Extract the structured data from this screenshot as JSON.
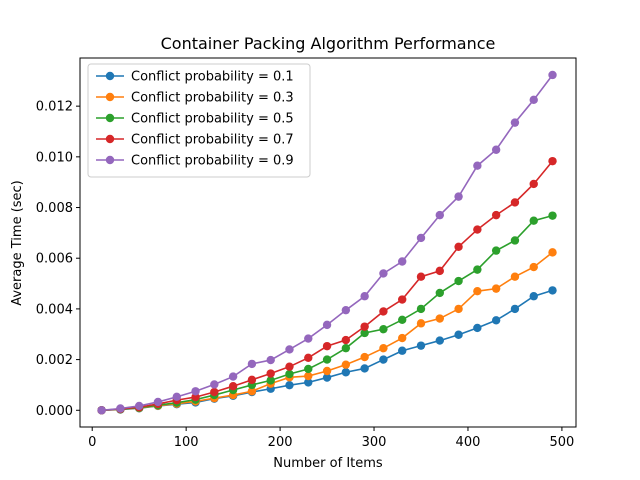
{
  "chart_data": {
    "type": "line",
    "title": "Container Packing Algorithm Performance",
    "xlabel": "Number of Items",
    "ylabel": "Average Time (sec)",
    "xlim": [
      -13,
      515
    ],
    "ylim": [
      -0.00066,
      0.0139
    ],
    "xticks": [
      0,
      100,
      200,
      300,
      400,
      500
    ],
    "xtick_labels": [
      "0",
      "100",
      "200",
      "300",
      "400",
      "500"
    ],
    "yticks": [
      0,
      0.002,
      0.004,
      0.006,
      0.008,
      0.01,
      0.012
    ],
    "ytick_labels": [
      "0.000",
      "0.002",
      "0.004",
      "0.006",
      "0.008",
      "0.010",
      "0.012"
    ],
    "grid": false,
    "legend_position": "upper-left",
    "x": [
      10,
      30,
      50,
      70,
      90,
      110,
      130,
      150,
      170,
      190,
      210,
      230,
      250,
      270,
      290,
      310,
      330,
      350,
      370,
      390,
      410,
      430,
      450,
      470,
      490
    ],
    "series": [
      {
        "name": "Conflict probability = 0.1",
        "color": "#1f77b4",
        "values": [
          0.0,
          3e-05,
          8e-05,
          0.00017,
          0.00024,
          0.00031,
          0.00046,
          0.00057,
          0.00072,
          0.00085,
          0.00099,
          0.0011,
          0.00129,
          0.0015,
          0.00165,
          0.002,
          0.00235,
          0.00255,
          0.00275,
          0.00298,
          0.00325,
          0.00355,
          0.004,
          0.0045,
          0.00473
        ]
      },
      {
        "name": "Conflict probability = 0.3",
        "color": "#ff7f0e",
        "values": [
          0.0,
          4e-05,
          9e-05,
          0.00018,
          0.00026,
          0.00035,
          0.00048,
          0.0006,
          0.00075,
          0.00105,
          0.0013,
          0.00135,
          0.00155,
          0.0018,
          0.0021,
          0.00245,
          0.00285,
          0.00343,
          0.00362,
          0.004,
          0.0047,
          0.0048,
          0.00527,
          0.00565,
          0.00623
        ]
      },
      {
        "name": "Conflict probability = 0.5",
        "color": "#2ca02c",
        "values": [
          0.0,
          4e-05,
          0.0001,
          0.0002,
          0.0003,
          0.00042,
          0.0006,
          0.0008,
          0.001,
          0.00118,
          0.00143,
          0.00163,
          0.002,
          0.00245,
          0.00305,
          0.0032,
          0.00357,
          0.004,
          0.00463,
          0.0051,
          0.00555,
          0.0063,
          0.0067,
          0.00748,
          0.00768
        ]
      },
      {
        "name": "Conflict probability = 0.7",
        "color": "#d62728",
        "values": [
          0.0,
          5e-05,
          0.00012,
          0.00025,
          0.0004,
          0.00052,
          0.00072,
          0.00095,
          0.0012,
          0.00145,
          0.00172,
          0.00207,
          0.00253,
          0.00277,
          0.0033,
          0.0039,
          0.00437,
          0.00527,
          0.0055,
          0.00645,
          0.00713,
          0.0077,
          0.0082,
          0.00893,
          0.00983
        ]
      },
      {
        "name": "Conflict probability = 0.9",
        "color": "#9467bd",
        "values": [
          0.0,
          7e-05,
          0.00017,
          0.00033,
          0.00053,
          0.00075,
          0.00102,
          0.00133,
          0.00183,
          0.00198,
          0.0024,
          0.00283,
          0.00337,
          0.00395,
          0.0045,
          0.0054,
          0.00587,
          0.0068,
          0.0077,
          0.00843,
          0.00965,
          0.01028,
          0.01135,
          0.01225,
          0.01323
        ]
      }
    ]
  }
}
